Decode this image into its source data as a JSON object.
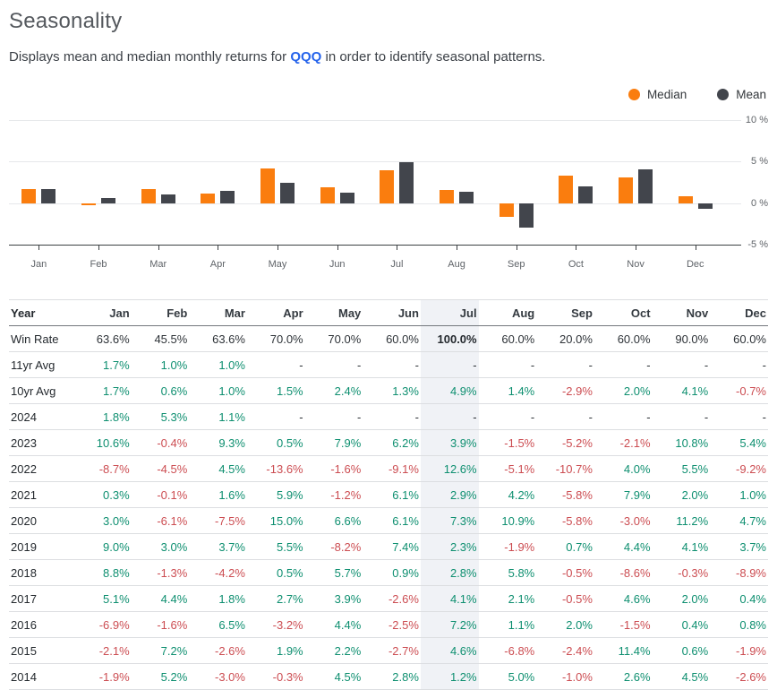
{
  "page": {
    "title": "Seasonality",
    "subtitle_prefix": "Displays mean and median monthly returns for ",
    "ticker": "QQQ",
    "subtitle_suffix": " in order to identify seasonal patterns."
  },
  "colors": {
    "orange": "#fa7d0e",
    "dark": "#42454c",
    "green": "#0e8f70",
    "red": "#cc4d52",
    "hl": "#f0f2f6"
  },
  "legend": [
    {
      "label": "Median",
      "color": "#fa7d0e"
    },
    {
      "label": "Mean",
      "color": "#42454c"
    }
  ],
  "chart_data": {
    "type": "bar",
    "categories": [
      "Jan",
      "Feb",
      "Mar",
      "Apr",
      "May",
      "Jun",
      "Jul",
      "Aug",
      "Sep",
      "Oct",
      "Nov",
      "Dec"
    ],
    "series": [
      {
        "name": "Median",
        "color": "#fa7d0e",
        "values": [
          1.7,
          -0.3,
          1.7,
          1.2,
          4.2,
          1.9,
          4.0,
          1.6,
          -1.7,
          3.3,
          3.1,
          0.8
        ]
      },
      {
        "name": "Mean",
        "color": "#42454c",
        "values": [
          1.7,
          0.6,
          1.0,
          1.5,
          2.4,
          1.3,
          4.9,
          1.4,
          -2.9,
          2.0,
          4.1,
          -0.7
        ]
      }
    ],
    "ylim": [
      -5,
      10
    ],
    "yticks": [
      {
        "value": 10,
        "label": "10 %"
      },
      {
        "value": 5,
        "label": "5 %"
      },
      {
        "value": 0,
        "label": "0 %"
      },
      {
        "value": -5,
        "label": "-5 %"
      }
    ],
    "grid": true,
    "legend_position": "top-right",
    "ylabel": "",
    "xlabel": "",
    "title": ""
  },
  "table": {
    "highlight_column": "Jul",
    "highlight_index": 7,
    "header": [
      "Year",
      "Jan",
      "Feb",
      "Mar",
      "Apr",
      "May",
      "Jun",
      "Jul",
      "Aug",
      "Sep",
      "Oct",
      "Nov",
      "Dec"
    ],
    "rows": [
      {
        "label": "Win Rate",
        "type": "plain",
        "values": [
          "63.6%",
          "45.5%",
          "63.6%",
          "70.0%",
          "70.0%",
          "60.0%",
          "100.0%",
          "60.0%",
          "20.0%",
          "60.0%",
          "90.0%",
          "60.0%"
        ]
      },
      {
        "label": "11yr Avg",
        "type": "signed",
        "values": [
          "1.7%",
          "1.0%",
          "1.0%",
          "-",
          "-",
          "-",
          "-",
          "-",
          "-",
          "-",
          "-",
          "-"
        ]
      },
      {
        "label": "10yr Avg",
        "type": "signed",
        "values": [
          "1.7%",
          "0.6%",
          "1.0%",
          "1.5%",
          "2.4%",
          "1.3%",
          "4.9%",
          "1.4%",
          "-2.9%",
          "2.0%",
          "4.1%",
          "-0.7%"
        ]
      },
      {
        "label": "2024",
        "type": "signed",
        "values": [
          "1.8%",
          "5.3%",
          "1.1%",
          "-",
          "-",
          "-",
          "-",
          "-",
          "-",
          "-",
          "-",
          "-"
        ]
      },
      {
        "label": "2023",
        "type": "signed",
        "values": [
          "10.6%",
          "-0.4%",
          "9.3%",
          "0.5%",
          "7.9%",
          "6.2%",
          "3.9%",
          "-1.5%",
          "-5.2%",
          "-2.1%",
          "10.8%",
          "5.4%"
        ]
      },
      {
        "label": "2022",
        "type": "signed",
        "values": [
          "-8.7%",
          "-4.5%",
          "4.5%",
          "-13.6%",
          "-1.6%",
          "-9.1%",
          "12.6%",
          "-5.1%",
          "-10.7%",
          "4.0%",
          "5.5%",
          "-9.2%"
        ]
      },
      {
        "label": "2021",
        "type": "signed",
        "values": [
          "0.3%",
          "-0.1%",
          "1.6%",
          "5.9%",
          "-1.2%",
          "6.1%",
          "2.9%",
          "4.2%",
          "-5.8%",
          "7.9%",
          "2.0%",
          "1.0%"
        ]
      },
      {
        "label": "2020",
        "type": "signed",
        "values": [
          "3.0%",
          "-6.1%",
          "-7.5%",
          "15.0%",
          "6.6%",
          "6.1%",
          "7.3%",
          "10.9%",
          "-5.8%",
          "-3.0%",
          "11.2%",
          "4.7%"
        ]
      },
      {
        "label": "2019",
        "type": "signed",
        "values": [
          "9.0%",
          "3.0%",
          "3.7%",
          "5.5%",
          "-8.2%",
          "7.4%",
          "2.3%",
          "-1.9%",
          "0.7%",
          "4.4%",
          "4.1%",
          "3.7%"
        ]
      },
      {
        "label": "2018",
        "type": "signed",
        "values": [
          "8.8%",
          "-1.3%",
          "-4.2%",
          "0.5%",
          "5.7%",
          "0.9%",
          "2.8%",
          "5.8%",
          "-0.5%",
          "-8.6%",
          "-0.3%",
          "-8.9%"
        ]
      },
      {
        "label": "2017",
        "type": "signed",
        "values": [
          "5.1%",
          "4.4%",
          "1.8%",
          "2.7%",
          "3.9%",
          "-2.6%",
          "4.1%",
          "2.1%",
          "-0.5%",
          "4.6%",
          "2.0%",
          "0.4%"
        ]
      },
      {
        "label": "2016",
        "type": "signed",
        "values": [
          "-6.9%",
          "-1.6%",
          "6.5%",
          "-3.2%",
          "4.4%",
          "-2.5%",
          "7.2%",
          "1.1%",
          "2.0%",
          "-1.5%",
          "0.4%",
          "0.8%"
        ]
      },
      {
        "label": "2015",
        "type": "signed",
        "values": [
          "-2.1%",
          "7.2%",
          "-2.6%",
          "1.9%",
          "2.2%",
          "-2.7%",
          "4.6%",
          "-6.8%",
          "-2.4%",
          "11.4%",
          "0.6%",
          "-1.9%"
        ]
      },
      {
        "label": "2014",
        "type": "signed",
        "values": [
          "-1.9%",
          "5.2%",
          "-3.0%",
          "-0.3%",
          "4.5%",
          "2.8%",
          "1.2%",
          "5.0%",
          "-1.0%",
          "2.6%",
          "4.5%",
          "-2.6%"
        ]
      }
    ]
  }
}
